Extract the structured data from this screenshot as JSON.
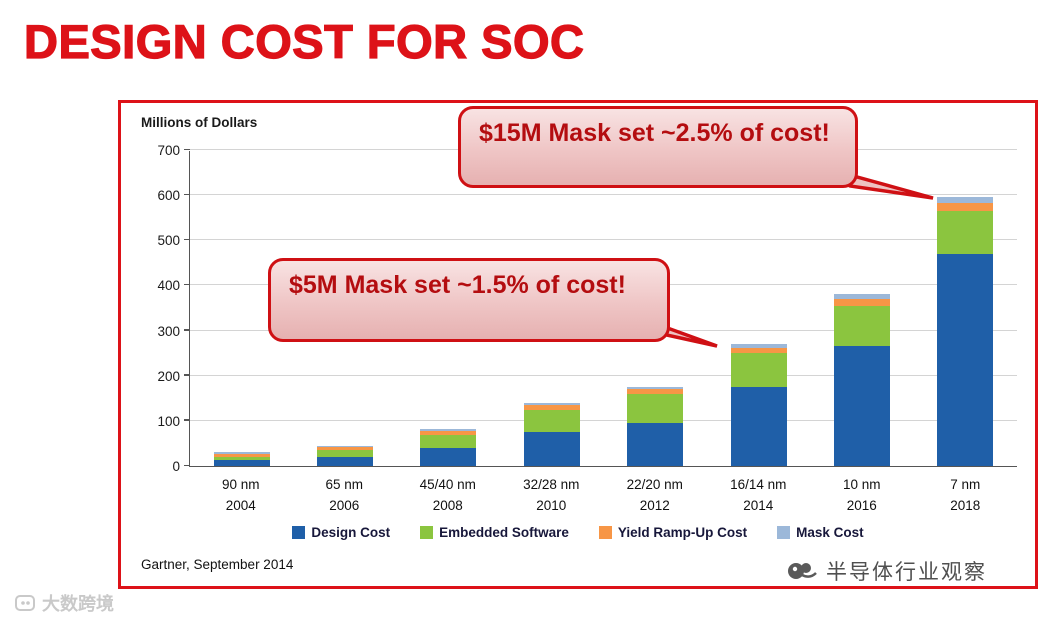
{
  "page": {
    "title": "DESIGN COST FOR SOC"
  },
  "chart": {
    "units_label": "Millions of Dollars",
    "source": "Gartner, September 2014"
  },
  "callouts": [
    {
      "text": "$15M Mask set ~2.5% of cost!"
    },
    {
      "text": "$5M Mask set ~1.5% of cost!"
    }
  ],
  "watermarks": {
    "bottom_right": "半导体行业观察",
    "bottom_left": "大数跨境"
  },
  "colors": {
    "accent_red": "#dd1218",
    "callout_border": "#cf1014",
    "callout_text": "#b40d10"
  },
  "chart_data": {
    "type": "bar",
    "stacked": true,
    "title": "",
    "xlabel": "",
    "ylabel": "Millions of Dollars",
    "ylim": [
      0,
      700
    ],
    "ytick_step": 100,
    "grid": true,
    "legend_position": "bottom",
    "categories": [
      {
        "node": "90 nm",
        "year": "2004"
      },
      {
        "node": "65 nm",
        "year": "2006"
      },
      {
        "node": "45/40 nm",
        "year": "2008"
      },
      {
        "node": "32/28 nm",
        "year": "2010"
      },
      {
        "node": "22/20 nm",
        "year": "2012"
      },
      {
        "node": "16/14 nm",
        "year": "2014"
      },
      {
        "node": "10 nm",
        "year": "2016"
      },
      {
        "node": "7 nm",
        "year": "2018"
      }
    ],
    "series": [
      {
        "name": "Design Cost",
        "color": "#1f5fa8",
        "values": [
          13,
          20,
          40,
          75,
          95,
          175,
          265,
          470
        ]
      },
      {
        "name": "Embedded Software",
        "color": "#8bc53f",
        "values": [
          8,
          15,
          28,
          50,
          65,
          75,
          90,
          95
        ]
      },
      {
        "name": "Yield Ramp-Up Cost",
        "color": "#f79646",
        "values": [
          6,
          7,
          10,
          10,
          10,
          12,
          15,
          18
        ]
      },
      {
        "name": "Mask Cost",
        "color": "#9cb8d9",
        "values": [
          3,
          3,
          4,
          5,
          5,
          8,
          10,
          12
        ]
      }
    ],
    "totals": [
      30,
      45,
      82,
      140,
      175,
      270,
      380,
      595
    ]
  }
}
